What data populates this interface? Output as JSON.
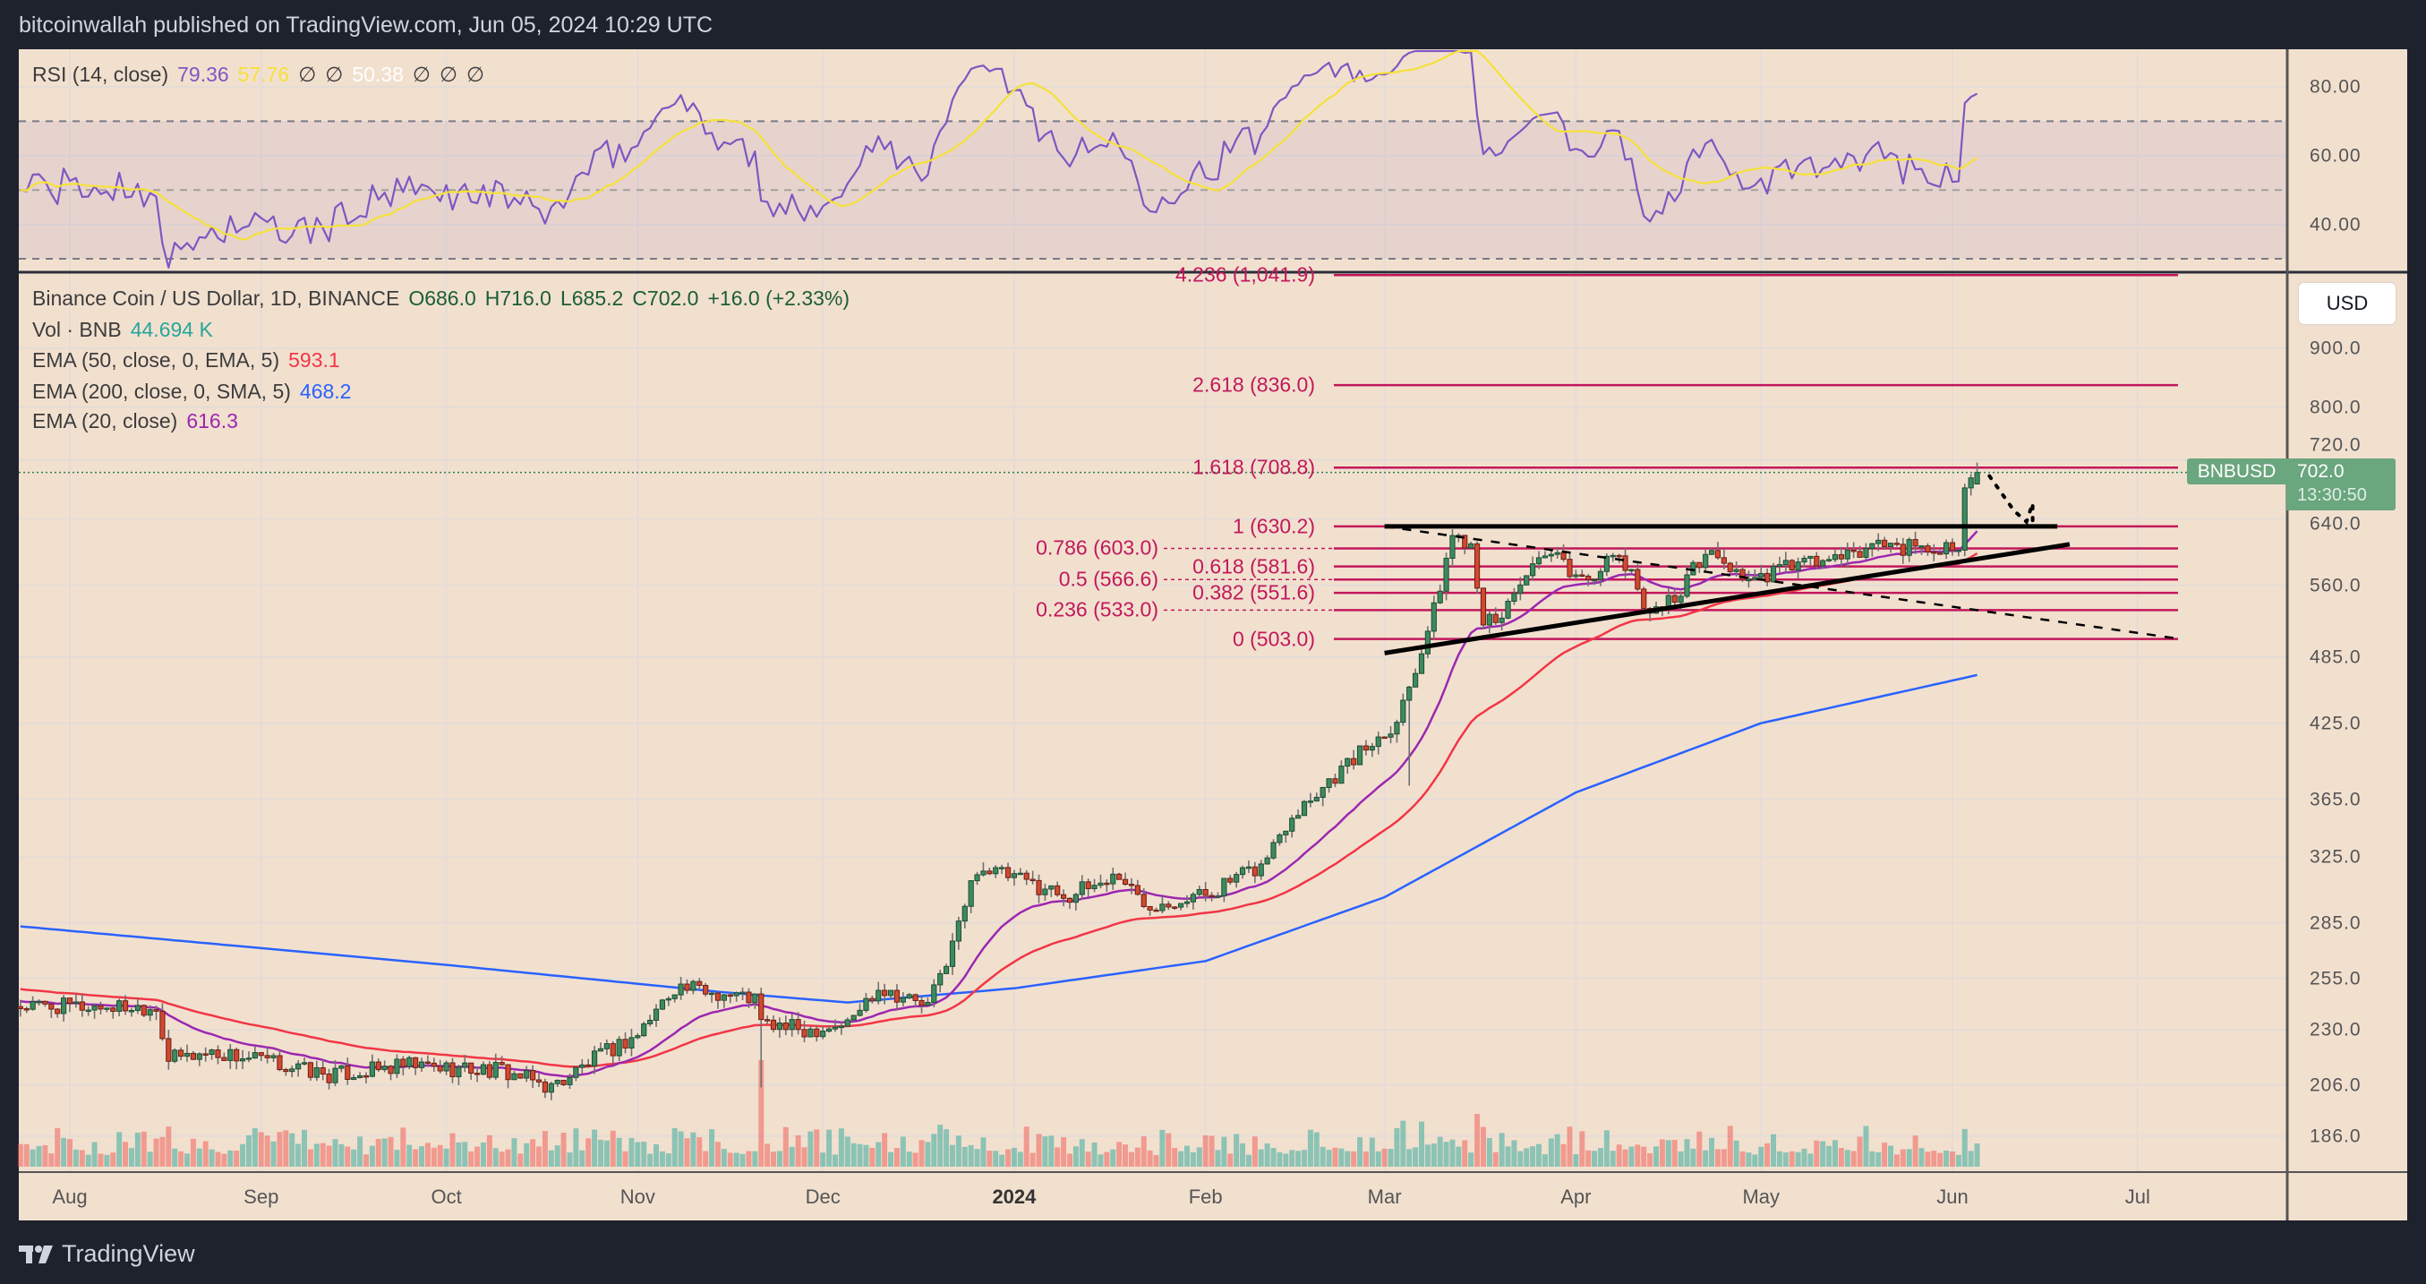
{
  "header": {
    "published": "bitcoinwallah published on TradingView.com, Jun 05, 2024 10:29 UTC"
  },
  "rsi_legend": {
    "name": "RSI (14, close)",
    "rsi": "79.36",
    "ma": "57.76",
    "empty1": "∅",
    "empty2": "∅",
    "value3": "50.38",
    "empty3": "∅",
    "empty4": "∅",
    "empty5": "∅"
  },
  "legend": {
    "symbol": "Binance Coin / US Dollar, 1D, BINANCE",
    "open": "O686.0",
    "high": "H716.0",
    "low": "L685.2",
    "close": "C702.0",
    "change": "+16.0 (+2.33%)",
    "vol_label": "Vol · BNB",
    "vol_value": "44.694 K",
    "ema50_label": "EMA (50, close, 0, EMA, 5)",
    "ema50_value": "593.1",
    "ema200_label": "EMA (200, close, 0, SMA, 5)",
    "ema200_value": "468.2",
    "ema20_label": "EMA (20, close)",
    "ema20_value": "616.3"
  },
  "price_axis": {
    "currency": "USD",
    "symbol_tag": "BNBUSD",
    "last_price": "702.0",
    "countdown": "13:30:50"
  },
  "footer": {
    "brand": "TradingView"
  },
  "colors": {
    "up": "#2e7d52",
    "down": "#c0392b",
    "ema50": "#f23645",
    "ema200": "#2962ff",
    "ema20": "#9c27b0",
    "rsi": "#7e57c2",
    "rsi_ma": "#ffeb3b",
    "fib": "#c2185b"
  },
  "chart_data": {
    "type": "candlestick",
    "title": "Binance Coin / US Dollar, 1D, BINANCE",
    "scale": "log",
    "start_date": "2023-07-24",
    "end_date": "2024-06-05",
    "y_ticks": [
      900,
      800,
      720,
      640,
      560,
      485,
      425,
      365,
      325,
      285,
      255,
      230,
      206,
      186
    ],
    "y_tick_labels": [
      "900.0",
      "800.0",
      "720.0",
      "640.0",
      "560.0",
      "485.0",
      "425.0",
      "365.0",
      "325.0",
      "285.0",
      "255.0",
      "230.0",
      "206.0",
      "186.0"
    ],
    "rsi_ticks": [
      80,
      60,
      40
    ],
    "rsi_tick_labels": [
      "80.00",
      "60.00",
      "40.00"
    ],
    "rsi_bands": {
      "upper": 70,
      "middle": 50,
      "lower": 30
    },
    "x_ticks": [
      {
        "date": "2023-08-01",
        "label": "Aug"
      },
      {
        "date": "2023-09-01",
        "label": "Sep"
      },
      {
        "date": "2023-10-01",
        "label": "Oct"
      },
      {
        "date": "2023-11-01",
        "label": "Nov"
      },
      {
        "date": "2023-12-01",
        "label": "Dec"
      },
      {
        "date": "2024-01-01",
        "label": "2024"
      },
      {
        "date": "2024-02-01",
        "label": "Feb"
      },
      {
        "date": "2024-03-01",
        "label": "Mar"
      },
      {
        "date": "2024-04-01",
        "label": "Apr"
      },
      {
        "date": "2024-05-01",
        "label": "May"
      },
      {
        "date": "2024-06-01",
        "label": "Jun"
      },
      {
        "date": "2024-07-01",
        "label": "Jul"
      }
    ],
    "close_path": [
      [
        "2023-07-24",
        241
      ],
      [
        "2023-08-15",
        241
      ],
      [
        "2023-08-17",
        217
      ],
      [
        "2023-08-24",
        220
      ],
      [
        "2023-08-31",
        217
      ],
      [
        "2023-09-12",
        210
      ],
      [
        "2023-09-25",
        214
      ],
      [
        "2023-10-10",
        212
      ],
      [
        "2023-10-18",
        205
      ],
      [
        "2023-10-25",
        217
      ],
      [
        "2023-11-01",
        228
      ],
      [
        "2023-11-07",
        251
      ],
      [
        "2023-11-20",
        245
      ],
      [
        "2023-11-21",
        233
      ],
      [
        "2023-11-28",
        230
      ],
      [
        "2023-12-05",
        233
      ],
      [
        "2023-12-10",
        251
      ],
      [
        "2023-12-18",
        241
      ],
      [
        "2023-12-22",
        273
      ],
      [
        "2023-12-26",
        319
      ],
      [
        "2023-12-30",
        314
      ],
      [
        "2024-01-10",
        301
      ],
      [
        "2024-01-18",
        314
      ],
      [
        "2024-01-22",
        296
      ],
      [
        "2024-02-01",
        302
      ],
      [
        "2024-02-10",
        319
      ],
      [
        "2024-02-15",
        355
      ],
      [
        "2024-02-25",
        396
      ],
      [
        "2024-03-03",
        428
      ],
      [
        "2024-03-06",
        476
      ],
      [
        "2024-03-09",
        532
      ],
      [
        "2024-03-12",
        620
      ],
      [
        "2024-03-15",
        610
      ],
      [
        "2024-03-17",
        525
      ],
      [
        "2024-03-19",
        516
      ],
      [
        "2024-03-23",
        566
      ],
      [
        "2024-03-28",
        595
      ],
      [
        "2024-04-02",
        566
      ],
      [
        "2024-04-08",
        595
      ],
      [
        "2024-04-13",
        532
      ],
      [
        "2024-04-17",
        546
      ],
      [
        "2024-04-22",
        600
      ],
      [
        "2024-04-30",
        562
      ],
      [
        "2024-05-05",
        583
      ],
      [
        "2024-05-15",
        591
      ],
      [
        "2024-05-20",
        610
      ],
      [
        "2024-05-28",
        600
      ],
      [
        "2024-06-02",
        611
      ],
      [
        "2024-06-03",
        687
      ],
      [
        "2024-06-04",
        686
      ],
      [
        "2024-06-05",
        702
      ]
    ],
    "last_candle": {
      "open": 686.0,
      "high": 716.0,
      "low": 685.2,
      "close": 702.0
    },
    "ema200_path": [
      [
        "2023-07-24",
        283
      ],
      [
        "2023-10-01",
        262
      ],
      [
        "2023-11-15",
        248
      ],
      [
        "2023-12-05",
        243
      ],
      [
        "2024-01-01",
        250
      ],
      [
        "2024-02-01",
        264
      ],
      [
        "2024-03-01",
        300
      ],
      [
        "2024-04-01",
        370
      ],
      [
        "2024-05-01",
        425
      ],
      [
        "2024-06-05",
        468
      ]
    ],
    "fib_levels": [
      {
        "label": "4.236 (1,041.9)",
        "price": 1041.9
      },
      {
        "label": "2.618 (836.0)",
        "price": 836.0
      },
      {
        "label": "1.618 (708.8)",
        "price": 708.8
      },
      {
        "label": "1 (630.2)",
        "price": 630.2
      },
      {
        "label": "0.786 (603.0)",
        "price": 603.0
      },
      {
        "label": "0.618 (581.6)",
        "price": 581.6
      },
      {
        "label": "0.5 (566.6)",
        "price": 566.6
      },
      {
        "label": "0.382 (551.6)",
        "price": 551.6
      },
      {
        "label": "0.236 (533.0)",
        "price": 533.0
      },
      {
        "label": "0 (503.0)",
        "price": 503.0
      }
    ],
    "drawings": {
      "resistance": {
        "from": [
          "2024-03-01",
          630.2
        ],
        "to": [
          "2024-06-18",
          630.2
        ]
      },
      "ascending_support": {
        "from": [
          "2024-03-01",
          489
        ],
        "to": [
          "2024-06-20",
          608
        ]
      },
      "descending_dashed": {
        "from": [
          "2024-03-01",
          630.2
        ],
        "to": [
          "2024-07-08",
          503
        ]
      },
      "projection_dotted": [
        [
          "2024-06-07",
          697
        ],
        [
          "2024-06-11",
          650
        ],
        [
          "2024-06-13",
          636
        ],
        [
          "2024-06-14",
          660
        ],
        [
          "2024-06-14",
          636
        ]
      ]
    }
  }
}
